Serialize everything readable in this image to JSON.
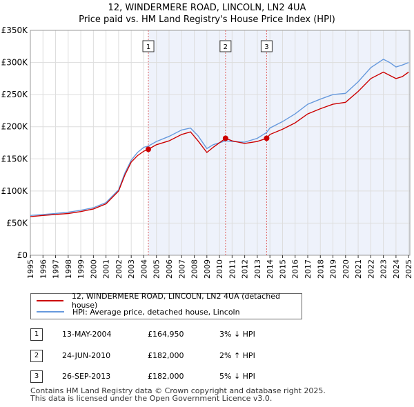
{
  "title": "12, WINDERMERE ROAD, LINCOLN, LN2 4UA",
  "subtitle": "Price paid vs. HM Land Registry's House Price Index (HPI)",
  "colors": {
    "property": "#cc0000",
    "hpi": "#6699dd",
    "shade": "#eef2fb",
    "vline": "#e06666"
  },
  "chart_data": {
    "type": "line",
    "title": "12, WINDERMERE ROAD, LINCOLN, LN2 4UA",
    "subtitle": "Price paid vs. HM Land Registry's House Price Index (HPI)",
    "xlim": [
      1995,
      2025.1
    ],
    "ylim": [
      0,
      350000
    ],
    "y_ticks": [
      0,
      50000,
      100000,
      150000,
      200000,
      250000,
      300000,
      350000
    ],
    "y_tick_labels": [
      "£0",
      "£50K",
      "£100K",
      "£150K",
      "£200K",
      "£250K",
      "£300K",
      "£350K"
    ],
    "x_ticks": [
      "1995",
      "1996",
      "1997",
      "1998",
      "1999",
      "2000",
      "2001",
      "2002",
      "2003",
      "2004",
      "2005",
      "2006",
      "2007",
      "2008",
      "2009",
      "2010",
      "2011",
      "2012",
      "2013",
      "2014",
      "2015",
      "2016",
      "2017",
      "2018",
      "2019",
      "2020",
      "2021",
      "2022",
      "2023",
      "2024",
      "2025"
    ],
    "shaded_from": 2004.36,
    "series": [
      {
        "name": "12, WINDERMERE ROAD, LINCOLN, LN2 4UA (detached house)",
        "points": [
          [
            1995,
            60000
          ],
          [
            1996,
            62000
          ],
          [
            1997,
            63500
          ],
          [
            1998,
            65000
          ],
          [
            1999,
            68000
          ],
          [
            2000,
            72000
          ],
          [
            2001,
            80000
          ],
          [
            2002,
            100000
          ],
          [
            2002.5,
            125000
          ],
          [
            2003,
            145000
          ],
          [
            2003.5,
            155000
          ],
          [
            2004,
            162000
          ],
          [
            2004.36,
            164950
          ],
          [
            2005,
            172000
          ],
          [
            2006,
            178000
          ],
          [
            2007,
            188000
          ],
          [
            2007.7,
            192000
          ],
          [
            2008.3,
            178000
          ],
          [
            2009,
            160000
          ],
          [
            2009.5,
            168000
          ],
          [
            2010.48,
            182000
          ],
          [
            2011,
            178000
          ],
          [
            2012,
            174000
          ],
          [
            2013,
            177000
          ],
          [
            2013.74,
            182000
          ],
          [
            2014,
            188000
          ],
          [
            2015,
            196000
          ],
          [
            2016,
            206000
          ],
          [
            2017,
            220000
          ],
          [
            2018,
            228000
          ],
          [
            2019,
            235000
          ],
          [
            2020,
            238000
          ],
          [
            2021,
            255000
          ],
          [
            2022,
            275000
          ],
          [
            2023,
            285000
          ],
          [
            2023.5,
            280000
          ],
          [
            2024,
            275000
          ],
          [
            2024.5,
            278000
          ],
          [
            2025,
            285000
          ]
        ]
      },
      {
        "name": "HPI: Average price, detached house, Lincoln",
        "points": [
          [
            1995,
            62000
          ],
          [
            1996,
            63500
          ],
          [
            1997,
            65000
          ],
          [
            1998,
            67000
          ],
          [
            1999,
            70000
          ],
          [
            2000,
            74000
          ],
          [
            2001,
            82000
          ],
          [
            2002,
            102000
          ],
          [
            2002.5,
            128000
          ],
          [
            2003,
            148000
          ],
          [
            2003.5,
            160000
          ],
          [
            2004,
            168000
          ],
          [
            2004.36,
            170000
          ],
          [
            2005,
            177000
          ],
          [
            2006,
            185000
          ],
          [
            2007,
            195000
          ],
          [
            2007.7,
            198000
          ],
          [
            2008.3,
            186000
          ],
          [
            2009,
            166000
          ],
          [
            2009.5,
            172000
          ],
          [
            2010.48,
            178000
          ],
          [
            2011,
            177000
          ],
          [
            2012,
            176000
          ],
          [
            2013,
            182000
          ],
          [
            2013.74,
            191000
          ],
          [
            2014,
            198000
          ],
          [
            2015,
            208000
          ],
          [
            2016,
            220000
          ],
          [
            2017,
            235000
          ],
          [
            2018,
            243000
          ],
          [
            2019,
            250000
          ],
          [
            2020,
            252000
          ],
          [
            2021,
            270000
          ],
          [
            2022,
            292000
          ],
          [
            2023,
            305000
          ],
          [
            2023.5,
            300000
          ],
          [
            2024,
            293000
          ],
          [
            2024.5,
            296000
          ],
          [
            2025,
            300000
          ]
        ]
      }
    ],
    "markers": [
      {
        "label": "1",
        "x": 2004.36,
        "y": 164950
      },
      {
        "label": "2",
        "x": 2010.48,
        "y": 182000
      },
      {
        "label": "3",
        "x": 2013.74,
        "y": 182000
      }
    ]
  },
  "legend": {
    "property": "12, WINDERMERE ROAD, LINCOLN, LN2 4UA (detached house)",
    "hpi": "HPI: Average price, detached house, Lincoln"
  },
  "transactions": [
    {
      "num": "1",
      "date": "13-MAY-2004",
      "price": "£164,950",
      "delta": "3% ↓ HPI"
    },
    {
      "num": "2",
      "date": "24-JUN-2010",
      "price": "£182,000",
      "delta": "2% ↑ HPI"
    },
    {
      "num": "3",
      "date": "26-SEP-2013",
      "price": "£182,000",
      "delta": "5% ↓ HPI"
    }
  ],
  "footer": {
    "line1": "Contains HM Land Registry data © Crown copyright and database right 2025.",
    "line2": "This data is licensed under the Open Government Licence v3.0."
  }
}
